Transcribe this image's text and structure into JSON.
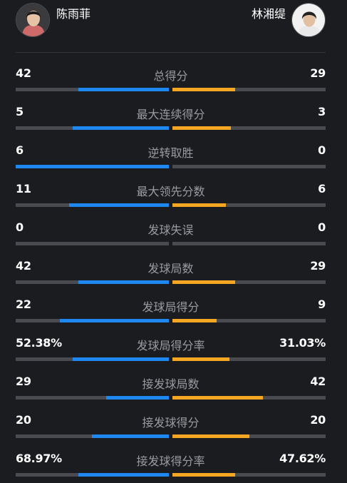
{
  "players": {
    "left": {
      "name": "陈雨菲",
      "color": "#1e88f0"
    },
    "right": {
      "name": "林湘缇",
      "color": "#f5a623"
    }
  },
  "stats": [
    {
      "label": "总得分",
      "left": "42",
      "right": "29",
      "left_ratio": 0.59,
      "right_ratio": 0.41
    },
    {
      "label": "最大连续得分",
      "left": "5",
      "right": "3",
      "left_ratio": 0.63,
      "right_ratio": 0.38
    },
    {
      "label": "逆转取胜",
      "left": "6",
      "right": "0",
      "left_ratio": 1.0,
      "right_ratio": 0.0
    },
    {
      "label": "最大领先分数",
      "left": "11",
      "right": "6",
      "left_ratio": 0.65,
      "right_ratio": 0.35
    },
    {
      "label": "发球失误",
      "left": "0",
      "right": "0",
      "left_ratio": 0.0,
      "right_ratio": 0.0
    },
    {
      "label": "发球局数",
      "left": "42",
      "right": "29",
      "left_ratio": 0.59,
      "right_ratio": 0.41
    },
    {
      "label": "发球局得分",
      "left": "22",
      "right": "9",
      "left_ratio": 0.71,
      "right_ratio": 0.29
    },
    {
      "label": "发球局得分率",
      "left": "52.38%",
      "right": "31.03%",
      "left_ratio": 0.63,
      "right_ratio": 0.37
    },
    {
      "label": "接发球局数",
      "left": "29",
      "right": "42",
      "left_ratio": 0.41,
      "right_ratio": 0.59
    },
    {
      "label": "接发球得分",
      "left": "20",
      "right": "20",
      "left_ratio": 0.5,
      "right_ratio": 0.5
    },
    {
      "label": "接发球得分率",
      "left": "68.97%",
      "right": "47.62%",
      "left_ratio": 0.59,
      "right_ratio": 0.41
    }
  ]
}
